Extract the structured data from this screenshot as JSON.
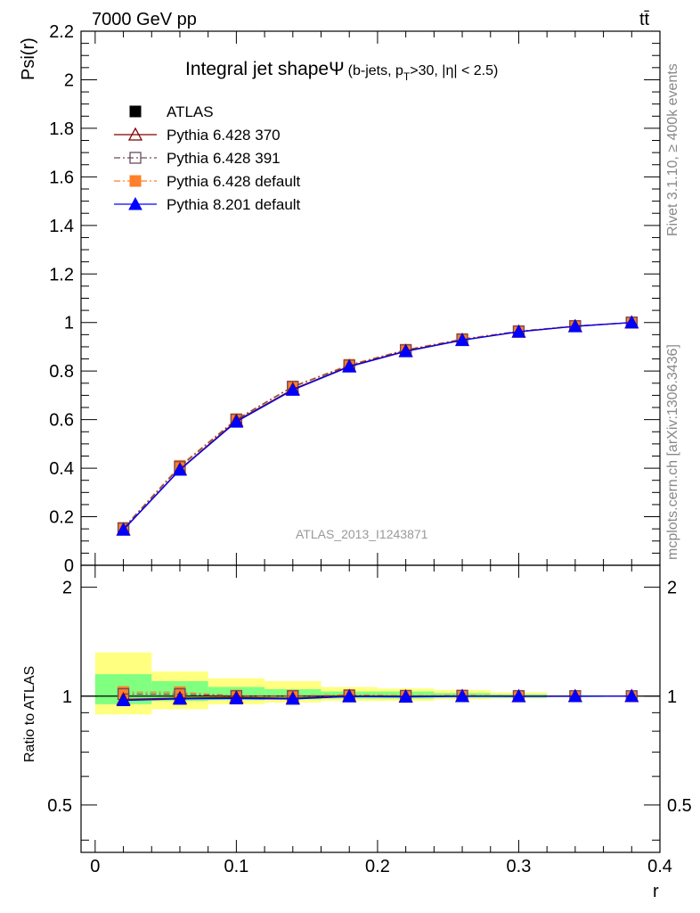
{
  "header": {
    "energy_label": "7000 GeV pp",
    "process_label": "tt̄"
  },
  "side_labels": {
    "rivet": "Rivet 3.1.10, ≥ 400k events",
    "mcplots": "mcplots.cern.ch [arXiv:1306.3436]"
  },
  "colors": {
    "atlas": "#000000",
    "p370": "#800000",
    "p391": "#6a4a5a",
    "p6def": "#ff7f2a",
    "p8def": "#0000ff",
    "band_inner": "#80ff80",
    "band_outer": "#ffff80"
  },
  "chart_data": {
    "type": "line",
    "title_main": "Integral jet shape",
    "title_symbol": "Ψ",
    "title_detail": "(b-jets, p",
    "title_detail_sub": "T",
    "title_detail_tail": ">30, |η| < 2.5)",
    "xlabel": "r",
    "ylabel": "Psi(r)",
    "ratio_ylabel": "Ratio to ATLAS",
    "watermark": "ATLAS_2013_I1243871",
    "xlim": [
      -0.01,
      0.4
    ],
    "ylim": [
      0,
      2.2
    ],
    "ratio_ylim": [
      0.37,
      2.3
    ],
    "ratio_scale": "log",
    "legend_position": "top-left",
    "x_ticks": [
      "0",
      "0.1",
      "0.2",
      "0.3",
      "0.4"
    ],
    "y_ticks": [
      "0",
      "0.2",
      "0.4",
      "0.6",
      "0.8",
      "1",
      "1.2",
      "1.4",
      "1.6",
      "1.8",
      "2",
      "2.2"
    ],
    "ratio_ticks": [
      "0.5",
      "1",
      "2"
    ],
    "x": [
      0.02,
      0.06,
      0.1,
      0.14,
      0.18,
      0.22,
      0.26,
      0.3,
      0.34,
      0.38
    ],
    "bin_edges": [
      0,
      0.04,
      0.08,
      0.12,
      0.16,
      0.2,
      0.24,
      0.28,
      0.32,
      0.36,
      0.4
    ],
    "series": [
      {
        "key": "atlas",
        "name": "ATLAS",
        "marker": "square-filled",
        "line": "none",
        "values": [
          0.15,
          0.4,
          0.6,
          0.735,
          0.82,
          0.885,
          0.928,
          0.963,
          0.985,
          1.0
        ]
      },
      {
        "key": "p370",
        "name": "Pythia 6.428 370",
        "marker": "triangle-open",
        "line": "solid",
        "values": [
          0.147,
          0.395,
          0.595,
          0.725,
          0.82,
          0.883,
          0.928,
          0.962,
          0.985,
          1.0
        ]
      },
      {
        "key": "p391",
        "name": "Pythia 6.428 391",
        "marker": "square-open",
        "line": "dashdot",
        "values": [
          0.152,
          0.405,
          0.6,
          0.735,
          0.823,
          0.886,
          0.93,
          0.963,
          0.985,
          1.0
        ]
      },
      {
        "key": "p6def",
        "name": "Pythia 6.428 default",
        "marker": "square-filled",
        "line": "dashdot",
        "values": [
          0.154,
          0.41,
          0.602,
          0.737,
          0.826,
          0.888,
          0.932,
          0.965,
          0.986,
          1.0
        ]
      },
      {
        "key": "p8def",
        "name": "Pythia 8.201 default",
        "marker": "triangle-filled",
        "line": "solid",
        "values": [
          0.146,
          0.393,
          0.591,
          0.722,
          0.818,
          0.881,
          0.927,
          0.962,
          0.984,
          1.0
        ]
      }
    ],
    "ratio_band_inner": [
      [
        0.95,
        1.15
      ],
      [
        0.97,
        1.1
      ],
      [
        0.975,
        1.06
      ],
      [
        0.98,
        1.045
      ],
      [
        0.985,
        1.03
      ],
      [
        0.985,
        1.03
      ],
      [
        0.99,
        1.02
      ],
      [
        0.99,
        1.012
      ],
      [
        0.995,
        1.005
      ],
      [
        0.998,
        1.002
      ]
    ],
    "ratio_band_outer": [
      [
        0.89,
        1.32
      ],
      [
        0.92,
        1.17
      ],
      [
        0.95,
        1.12
      ],
      [
        0.96,
        1.1
      ],
      [
        0.97,
        1.06
      ],
      [
        0.97,
        1.05
      ],
      [
        0.98,
        1.04
      ],
      [
        0.985,
        1.025
      ],
      [
        0.995,
        1.005
      ],
      [
        0.998,
        1.002
      ]
    ]
  }
}
